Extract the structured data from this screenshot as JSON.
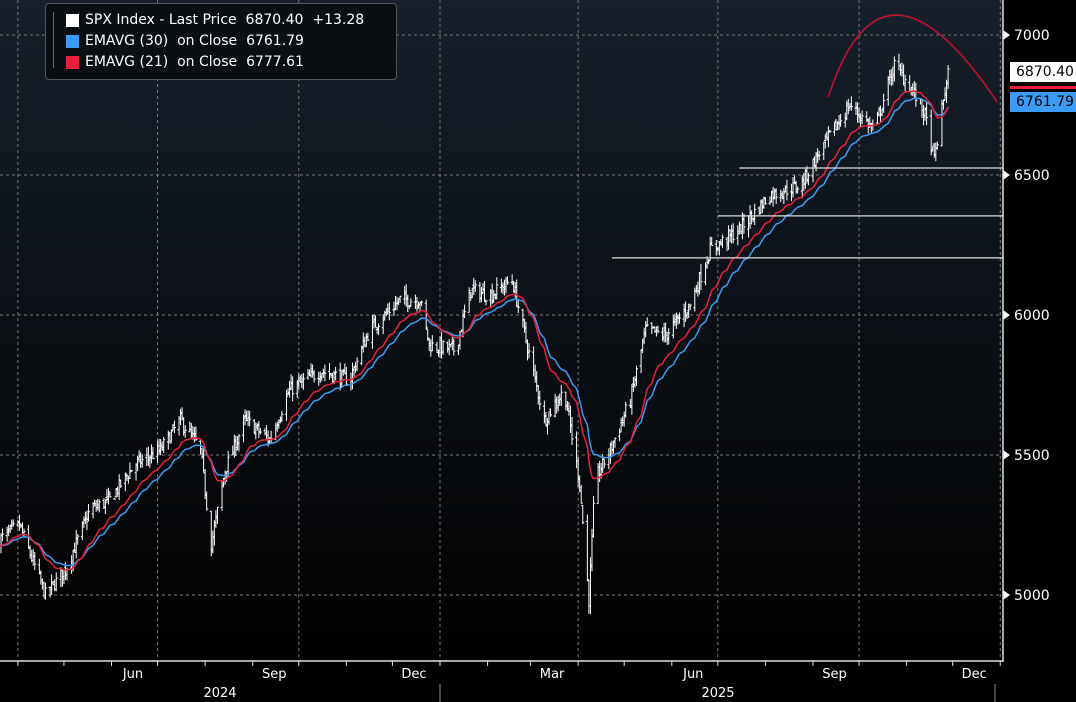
{
  "legend": {
    "price": {
      "label": "SPX Index - Last Price",
      "value": "6870.40",
      "change": "+13.28",
      "color": "#ffffff"
    },
    "ema30": {
      "label": "EMAVG (30)  on Close",
      "value": "6761.79",
      "color": "#3c9cf5"
    },
    "ema21": {
      "label": "EMAVG (21)  on Close",
      "value": "6777.61",
      "color": "#e8203c"
    }
  },
  "tags": {
    "last": "6870.40",
    "ema30": "6761.79"
  },
  "chart_data": {
    "type": "line",
    "title": "SPX Index - Last Price",
    "yticks": [
      5000,
      5500,
      6000,
      6500,
      7000
    ],
    "ylim": [
      4790,
      7115
    ],
    "xlim": [
      "2024-03-20",
      "2026-01-05"
    ],
    "month_labels": [
      "Jun",
      "Sep",
      "Dec",
      "Mar",
      "Jun",
      "Sep",
      "Dec"
    ],
    "year_labels": [
      "2024",
      "2025"
    ],
    "series": [
      {
        "name": "SPX Index weekly approx close",
        "points": [
          [
            "2024-03-20",
            5196
          ],
          [
            "2024-04-02",
            5250
          ],
          [
            "2024-04-19",
            5000
          ],
          [
            "2024-05-02",
            5090
          ],
          [
            "2024-05-18",
            5304
          ],
          [
            "2024-05-31",
            5340
          ],
          [
            "2024-06-16",
            5464
          ],
          [
            "2024-07-03",
            5518
          ],
          [
            "2024-07-16",
            5625
          ],
          [
            "2024-07-29",
            5520
          ],
          [
            "2024-08-05",
            5180
          ],
          [
            "2024-08-14",
            5446
          ],
          [
            "2024-08-27",
            5625
          ],
          [
            "2024-09-12",
            5554
          ],
          [
            "2024-09-25",
            5732
          ],
          [
            "2024-10-15",
            5800
          ],
          [
            "2024-11-03",
            5768
          ],
          [
            "2024-11-16",
            5946
          ],
          [
            "2024-12-06",
            6054
          ],
          [
            "2024-12-19",
            6054
          ],
          [
            "2024-12-25",
            5893
          ],
          [
            "2025-01-11",
            5875
          ],
          [
            "2025-01-21",
            6089
          ],
          [
            "2025-02-03",
            6071
          ],
          [
            "2025-02-17",
            6125
          ],
          [
            "2025-03-01",
            5839
          ],
          [
            "2025-03-10",
            5625
          ],
          [
            "2025-03-23",
            5732
          ],
          [
            "2025-04-02",
            5400
          ],
          [
            "2025-04-08",
            4982
          ],
          [
            "2025-04-12",
            5411
          ],
          [
            "2025-04-22",
            5518
          ],
          [
            "2025-05-05",
            5696
          ],
          [
            "2025-05-15",
            5946
          ],
          [
            "2025-05-28",
            5928
          ],
          [
            "2025-06-13",
            6036
          ],
          [
            "2025-06-26",
            6232
          ],
          [
            "2025-07-15",
            6304
          ],
          [
            "2025-08-04",
            6429
          ],
          [
            "2025-08-24",
            6464
          ],
          [
            "2025-09-06",
            6589
          ],
          [
            "2025-09-25",
            6750
          ],
          [
            "2025-10-11",
            6661
          ],
          [
            "2025-10-24",
            6893
          ],
          [
            "2025-11-03",
            6821
          ],
          [
            "2025-11-13",
            6714
          ],
          [
            "2025-11-19",
            6554
          ],
          [
            "2025-11-28",
            6870
          ]
        ]
      }
    ],
    "ema_periods": [
      30,
      21
    ],
    "support_lines": [
      {
        "value": 6525,
        "from": "2025-07-15"
      },
      {
        "value": 6354,
        "from": "2025-07-01"
      },
      {
        "value": 6204,
        "from": "2025-04-23"
      }
    ],
    "arc": {
      "start": [
        "2025-09-11",
        6779
      ],
      "peak": [
        "2025-10-26",
        7071
      ],
      "end": [
        "2025-12-30",
        6761
      ]
    }
  }
}
